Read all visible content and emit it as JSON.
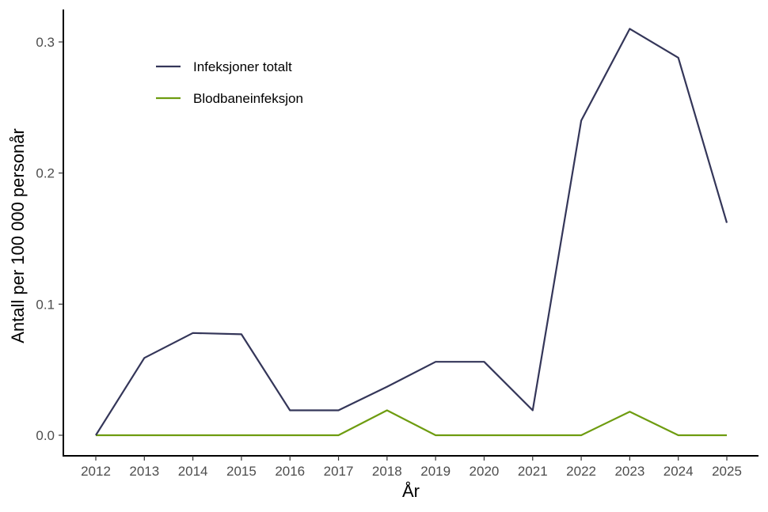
{
  "chart_data": {
    "type": "line",
    "title": "",
    "xlabel": "År",
    "ylabel": "Antall per 100 000 personår",
    "x": [
      2012,
      2013,
      2014,
      2015,
      2016,
      2017,
      2018,
      2019,
      2020,
      2021,
      2022,
      2023,
      2024,
      2025
    ],
    "categories": [
      "2012",
      "2013",
      "2014",
      "2015",
      "2016",
      "2017",
      "2018",
      "2019",
      "2020",
      "2021",
      "2022",
      "2023",
      "2024",
      "2025"
    ],
    "series": [
      {
        "name": "Infeksjoner totalt",
        "color": "#343659",
        "values": [
          0.0,
          0.059,
          0.078,
          0.077,
          0.019,
          0.019,
          0.037,
          0.056,
          0.056,
          0.019,
          0.24,
          0.31,
          0.288,
          0.162
        ]
      },
      {
        "name": "Blodbaneinfeksjon",
        "color": "#6e9c10",
        "values": [
          0.0,
          0.0,
          0.0,
          0.0,
          0.0,
          0.0,
          0.019,
          0.0,
          0.0,
          0.0,
          0.0,
          0.018,
          0.0,
          0.0
        ]
      }
    ],
    "yticks": [
      0.0,
      0.1,
      0.2,
      0.3
    ],
    "ytick_labels": [
      "0.0",
      "0.1",
      "0.2",
      "0.3"
    ],
    "ylim": [
      -0.015,
      0.325
    ],
    "grid": false,
    "legend_position": "inside-top-left"
  }
}
